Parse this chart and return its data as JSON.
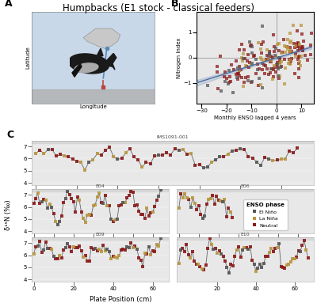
{
  "title": "Humpbacks (E1 stock - classical feeders)",
  "title_fontsize": 8.5,
  "panel_bg": "#e8e8e8",
  "map_bg": "#c8d8e8",
  "land_color": "#c8c8c8",
  "colors": {
    "El Nino": "#555555",
    "La Nina": "#b8963e",
    "Neutral": "#8b1a1a"
  },
  "scatter_xlabel": "Monthly ENSO lagged 4 years",
  "scatter_ylabel": "Nitrogen index",
  "scatter_xlim": [
    -32,
    15
  ],
  "scatter_ylim": [
    -2.0,
    2.0
  ],
  "scatter_xticks": [
    -30,
    -20,
    -10,
    0,
    10
  ],
  "scatter_yticks": [
    -1,
    0,
    1
  ],
  "enso_legend_title": "ENSO phase",
  "series_labels": [
    "IMS1091-001",
    "E04",
    "E06",
    "E09",
    "E10"
  ],
  "ylim": [
    3.8,
    7.5
  ],
  "yticks": [
    4,
    5,
    6,
    7
  ],
  "xlabel": "Plate Position (cm)",
  "ylabel": "δ¹⁵N (‰)",
  "line_color": "#666666",
  "line_width": 0.6,
  "marker_size": 5
}
